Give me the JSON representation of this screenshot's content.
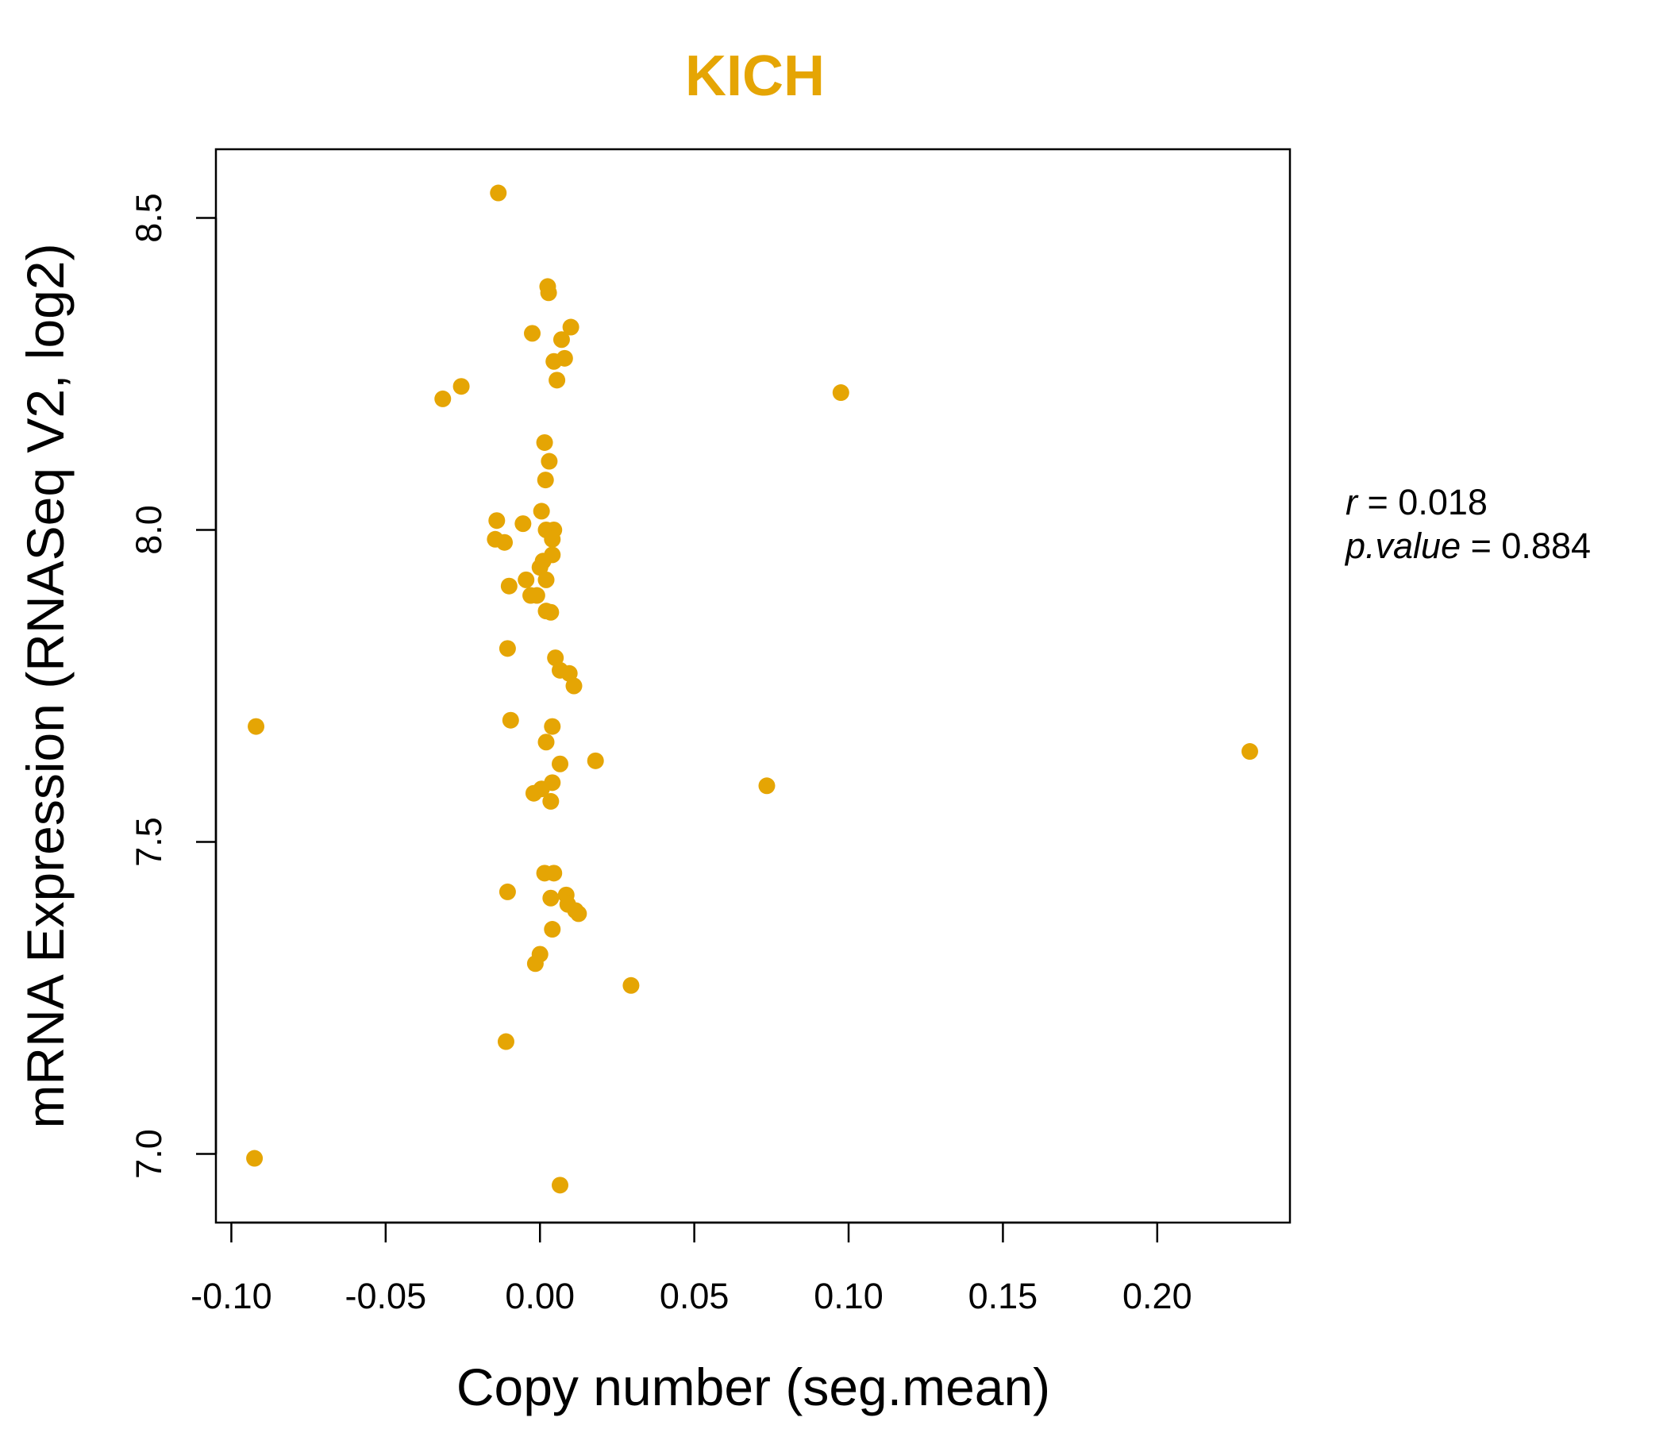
{
  "chart_data": {
    "type": "scatter",
    "title": "KICH",
    "xlabel": "Copy number (seg.mean)",
    "ylabel": "mRNA Expression (RNASeq V2, log2)",
    "xlim": [
      -0.105,
      0.243
    ],
    "ylim": [
      6.89,
      8.61
    ],
    "xticks": [
      -0.1,
      -0.05,
      0.0,
      0.05,
      0.1,
      0.15,
      0.2
    ],
    "xtick_labels": [
      "-0.10",
      "-0.05",
      "0.00",
      "0.05",
      "0.10",
      "0.15",
      "0.20"
    ],
    "yticks": [
      7.0,
      7.5,
      8.0,
      8.5
    ],
    "ytick_labels": [
      "7.0",
      "7.5",
      "8.0",
      "8.5"
    ],
    "grid": false,
    "legend": "none",
    "annotation": {
      "r_label": "r",
      "r_value": "0.018",
      "p_label": "p.value",
      "p_value": "0.884"
    },
    "color": "#E5A504",
    "points": [
      {
        "x": -0.0135,
        "y": 8.54
      },
      {
        "x": 0.0025,
        "y": 8.39
      },
      {
        "x": 0.0028,
        "y": 8.38
      },
      {
        "x": -0.0025,
        "y": 8.315
      },
      {
        "x": 0.01,
        "y": 8.325
      },
      {
        "x": 0.007,
        "y": 8.305
      },
      {
        "x": 0.0045,
        "y": 8.27
      },
      {
        "x": 0.008,
        "y": 8.275
      },
      {
        "x": 0.0055,
        "y": 8.24
      },
      {
        "x": -0.0255,
        "y": 8.23
      },
      {
        "x": -0.0315,
        "y": 8.21
      },
      {
        "x": 0.0975,
        "y": 8.22
      },
      {
        "x": 0.0015,
        "y": 8.14
      },
      {
        "x": 0.003,
        "y": 8.11
      },
      {
        "x": 0.0018,
        "y": 8.08
      },
      {
        "x": 0.0005,
        "y": 8.03
      },
      {
        "x": -0.014,
        "y": 8.015
      },
      {
        "x": -0.0055,
        "y": 8.01
      },
      {
        "x": 0.002,
        "y": 8.0
      },
      {
        "x": 0.0045,
        "y": 8.0
      },
      {
        "x": 0.004,
        "y": 7.985
      },
      {
        "x": -0.0145,
        "y": 7.985
      },
      {
        "x": -0.0115,
        "y": 7.98
      },
      {
        "x": 0.004,
        "y": 7.96
      },
      {
        "x": 0.001,
        "y": 7.95
      },
      {
        "x": 0.0,
        "y": 7.94
      },
      {
        "x": -0.0045,
        "y": 7.92
      },
      {
        "x": 0.002,
        "y": 7.92
      },
      {
        "x": -0.01,
        "y": 7.91
      },
      {
        "x": -0.003,
        "y": 7.895
      },
      {
        "x": -0.001,
        "y": 7.895
      },
      {
        "x": 0.002,
        "y": 7.87
      },
      {
        "x": 0.0035,
        "y": 7.868
      },
      {
        "x": -0.0105,
        "y": 7.81
      },
      {
        "x": 0.005,
        "y": 7.795
      },
      {
        "x": 0.0065,
        "y": 7.775
      },
      {
        "x": 0.0095,
        "y": 7.77
      },
      {
        "x": 0.011,
        "y": 7.75
      },
      {
        "x": -0.0095,
        "y": 7.695
      },
      {
        "x": 0.004,
        "y": 7.685
      },
      {
        "x": -0.092,
        "y": 7.685
      },
      {
        "x": 0.002,
        "y": 7.66
      },
      {
        "x": 0.018,
        "y": 7.63
      },
      {
        "x": 0.0065,
        "y": 7.625
      },
      {
        "x": 0.23,
        "y": 7.645
      },
      {
        "x": 0.004,
        "y": 7.595
      },
      {
        "x": 0.0735,
        "y": 7.59
      },
      {
        "x": 0.0005,
        "y": 7.585
      },
      {
        "x": -0.002,
        "y": 7.578
      },
      {
        "x": 0.0035,
        "y": 7.565
      },
      {
        "x": 0.0015,
        "y": 7.45
      },
      {
        "x": 0.0045,
        "y": 7.45
      },
      {
        "x": -0.0105,
        "y": 7.42
      },
      {
        "x": 0.0085,
        "y": 7.415
      },
      {
        "x": 0.0035,
        "y": 7.41
      },
      {
        "x": 0.009,
        "y": 7.4
      },
      {
        "x": 0.0125,
        "y": 7.385
      },
      {
        "x": 0.0115,
        "y": 7.39
      },
      {
        "x": 0.004,
        "y": 7.36
      },
      {
        "x": 0.0,
        "y": 7.32
      },
      {
        "x": -0.0015,
        "y": 7.305
      },
      {
        "x": 0.0295,
        "y": 7.27
      },
      {
        "x": -0.011,
        "y": 7.18
      },
      {
        "x": -0.0925,
        "y": 6.993
      },
      {
        "x": 0.0065,
        "y": 6.95
      }
    ]
  }
}
